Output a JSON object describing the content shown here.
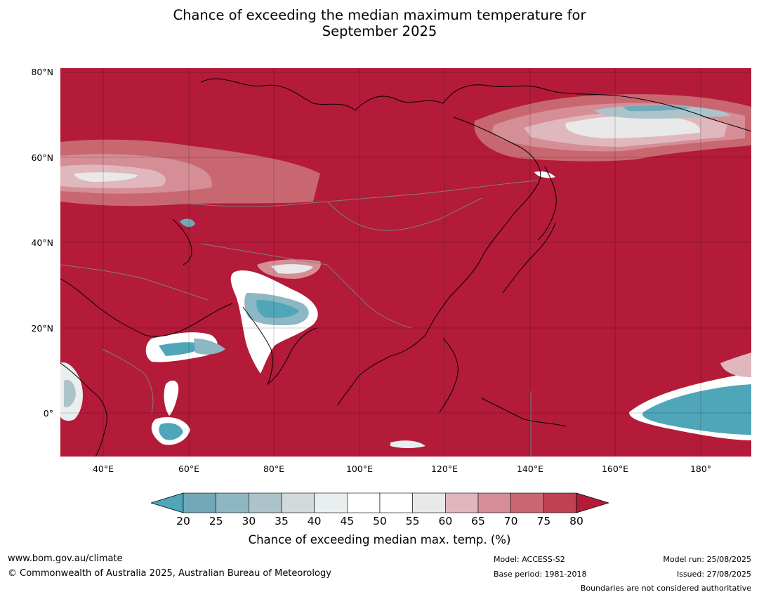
{
  "title": "Chance of exceeding the median maximum temperature for",
  "subtitle": "September 2025",
  "map": {
    "lat_ticks": [
      "80°N",
      "60°N",
      "40°N",
      "20°N",
      "0°"
    ],
    "lon_ticks": [
      "40°E",
      "60°E",
      "80°E",
      "100°E",
      "120°E",
      "140°E",
      "160°E",
      "180°"
    ],
    "colors": {
      "ocean_land_hot": "#b31b39",
      "coastline": "#000000",
      "borders": "#7f7f7f"
    }
  },
  "colorbar": {
    "ticks": [
      "20",
      "25",
      "30",
      "35",
      "40",
      "45",
      "50",
      "55",
      "60",
      "65",
      "70",
      "75",
      "80"
    ],
    "colors": [
      "#4fa6b9",
      "#72a9b8",
      "#8db7c3",
      "#acc3ca",
      "#d2d9db",
      "#e9eeef",
      "#ffffff",
      "#ffffff",
      "#e9e9e9",
      "#e0b7bc",
      "#d58e96",
      "#c96771",
      "#bf4253",
      "#b31b39"
    ],
    "label": "Chance of exceeding median max. temp. (%)"
  },
  "footer": {
    "url": "www.bom.gov.au/climate",
    "copyright": "© Commonwealth of Australia 2025, Australian Bureau of Meteorology",
    "model": "Model: ACCESS-S2",
    "base_period": "Base period: 1981-2018",
    "model_run": "Model run: 25/08/2025",
    "issued": "Issued: 27/08/2025",
    "disclaimer": "Boundaries are not considered authoritative"
  }
}
